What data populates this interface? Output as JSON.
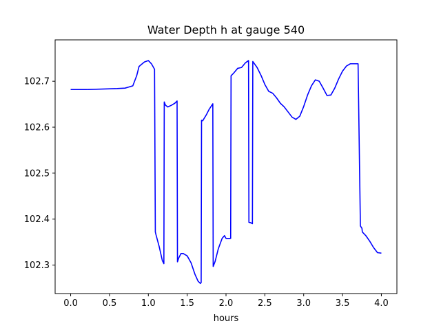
{
  "chart_data": {
    "type": "line",
    "title": "Water Depth h at gauge 540",
    "xlabel": "hours",
    "ylabel": "",
    "xlim": [
      -0.2,
      4.2
    ],
    "ylim": [
      102.238,
      102.79
    ],
    "xticks": [
      0.0,
      0.5,
      1.0,
      1.5,
      2.0,
      2.5,
      3.0,
      3.5,
      4.0
    ],
    "xtick_labels": [
      "0.0",
      "0.5",
      "1.0",
      "1.5",
      "2.0",
      "2.5",
      "3.0",
      "3.5",
      "4.0"
    ],
    "yticks": [
      102.3,
      102.4,
      102.5,
      102.6,
      102.7
    ],
    "ytick_labels": [
      "102.3",
      "102.4",
      "102.5",
      "102.6",
      "102.7"
    ],
    "grid": false,
    "colors": {
      "series": "#0000ff",
      "axes": "#000000",
      "background": "#ffffff"
    },
    "series": [
      {
        "x": [
          0.0,
          0.2,
          0.4,
          0.6,
          0.7,
          0.8,
          0.85,
          0.88,
          0.9,
          0.95,
          1.0,
          1.04,
          1.08,
          1.09,
          1.1,
          1.14,
          1.18,
          1.2,
          1.205,
          1.22,
          1.25,
          1.3,
          1.34,
          1.37,
          1.375,
          1.39,
          1.42,
          1.45,
          1.5,
          1.55,
          1.6,
          1.64,
          1.67,
          1.68,
          1.685,
          1.7,
          1.75,
          1.78,
          1.83,
          1.835,
          1.86,
          1.9,
          1.95,
          1.98,
          2.0,
          2.06,
          2.065,
          2.1,
          2.15,
          2.2,
          2.25,
          2.29,
          2.295,
          2.32,
          2.34,
          2.345,
          2.4,
          2.45,
          2.5,
          2.55,
          2.6,
          2.65,
          2.7,
          2.75,
          2.8,
          2.85,
          2.9,
          2.95,
          3.0,
          3.05,
          3.1,
          3.15,
          3.2,
          3.25,
          3.3,
          3.35,
          3.4,
          3.45,
          3.5,
          3.55,
          3.6,
          3.65,
          3.7,
          3.73,
          3.75,
          3.755,
          3.8,
          3.85,
          3.9,
          3.95,
          4.0
        ],
        "y": [
          102.682,
          102.682,
          102.683,
          102.684,
          102.685,
          102.69,
          102.712,
          102.732,
          102.735,
          102.742,
          102.745,
          102.738,
          102.726,
          102.372,
          102.365,
          102.34,
          102.31,
          102.303,
          102.655,
          102.648,
          102.644,
          102.648,
          102.652,
          102.657,
          102.307,
          102.315,
          102.325,
          102.325,
          102.32,
          102.305,
          102.28,
          102.265,
          102.26,
          102.262,
          102.615,
          102.614,
          102.628,
          102.638,
          102.651,
          102.297,
          102.308,
          102.335,
          102.358,
          102.364,
          102.358,
          102.358,
          102.712,
          102.718,
          102.728,
          102.73,
          102.74,
          102.745,
          102.393,
          102.392,
          102.39,
          102.743,
          102.73,
          102.713,
          102.693,
          102.678,
          102.674,
          102.664,
          102.652,
          102.644,
          102.633,
          102.622,
          102.617,
          102.624,
          102.645,
          102.67,
          102.69,
          102.703,
          102.7,
          102.685,
          102.669,
          102.67,
          102.685,
          102.705,
          102.722,
          102.733,
          102.738,
          102.738,
          102.738,
          102.385,
          102.38,
          102.372,
          102.364,
          102.352,
          102.338,
          102.327,
          102.326
        ]
      }
    ]
  }
}
